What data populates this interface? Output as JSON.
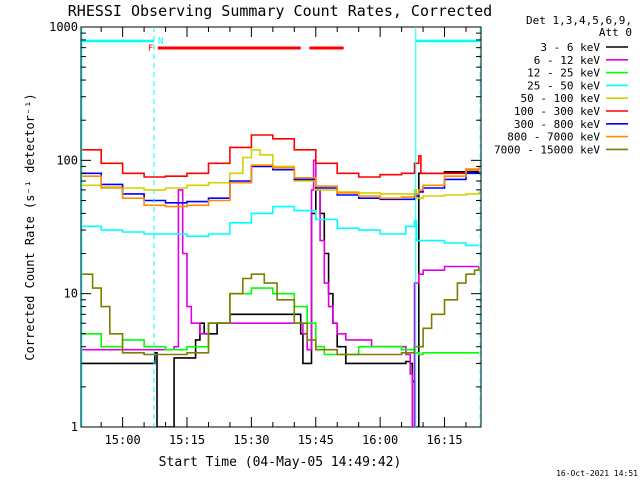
{
  "chart_data": {
    "type": "line",
    "title": "RHESSI Observing Summary Count Rates, Corrected",
    "xlabel": "Start Time (04-May-05 14:49:42)",
    "ylabel": "Corrected Count Rate (s⁻¹ detector⁻¹)",
    "y_scale": "log",
    "ylim": [
      1,
      1000
    ],
    "xlim_minutes": [
      -9.7,
      83.5
    ],
    "x_ticks": [
      {
        "minute": 0,
        "label": "15:00"
      },
      {
        "minute": 15,
        "label": "15:15"
      },
      {
        "minute": 30,
        "label": "15:30"
      },
      {
        "minute": 45,
        "label": "15:45"
      },
      {
        "minute": 60,
        "label": "16:00"
      },
      {
        "minute": 75,
        "label": "16:15"
      }
    ],
    "y_ticks": [
      {
        "value": 1,
        "label": "1"
      },
      {
        "value": 10,
        "label": "10"
      },
      {
        "value": 100,
        "label": "100"
      },
      {
        "value": 1000,
        "label": "1000"
      }
    ],
    "legend_title": [
      "Det 1,3,4,5,6,9,",
      "Att 0"
    ],
    "legend_position": "right",
    "timestamp": "16-Oct-2021 14:51",
    "series": [
      {
        "name": "3 - 6 keV",
        "color": "#000000",
        "x": [
          -9.5,
          -5,
          0,
          5,
          7.5,
          8,
          12,
          16,
          17,
          18,
          19,
          22,
          25,
          28,
          31,
          34,
          37,
          40,
          41.5,
          42,
          43,
          44,
          45,
          46,
          47,
          48,
          49,
          50,
          52,
          54,
          56,
          58,
          60,
          62,
          64,
          66,
          67,
          67.5,
          68,
          69,
          70,
          72,
          75,
          78,
          80,
          83
        ],
        "y": [
          3,
          3,
          3,
          3,
          3.6,
          1,
          3.3,
          3.3,
          4.5,
          6,
          5,
          6,
          7,
          7,
          7,
          7,
          7,
          7,
          5,
          3,
          3,
          40,
          60,
          40,
          20,
          10,
          6,
          4,
          3,
          3,
          3,
          3,
          3,
          3,
          3,
          3.1,
          3,
          2.2,
          1,
          80,
          80,
          80,
          82,
          82,
          82,
          82
        ]
      },
      {
        "name": "6 - 12 keV",
        "color": "#e100e1",
        "x": [
          -9.5,
          -5,
          0,
          5,
          10,
          12,
          13,
          14,
          15,
          16,
          18,
          20,
          23,
          26,
          30,
          34,
          38,
          42,
          43,
          44,
          44.5,
          45,
          46,
          47,
          48,
          49,
          50,
          52,
          55,
          58,
          62,
          66,
          67,
          67.5,
          68,
          69,
          70,
          75,
          80,
          83
        ],
        "y": [
          3.8,
          3.8,
          3.8,
          3.8,
          3.8,
          4,
          60,
          20,
          8,
          6,
          5,
          6,
          6,
          6,
          6,
          6,
          6,
          5,
          3.8,
          60,
          100,
          60,
          25,
          12,
          8,
          6,
          5,
          4.5,
          4.5,
          4,
          4,
          3.5,
          2.5,
          1,
          12,
          14,
          15,
          16,
          16,
          16
        ]
      },
      {
        "name": "12 - 25 keV",
        "color": "#00ff00",
        "x": [
          -9.5,
          -5,
          0,
          5,
          10,
          15,
          20,
          25,
          30,
          35,
          40,
          43,
          45,
          47,
          50,
          55,
          60,
          65,
          68,
          69,
          70,
          75,
          80,
          83
        ],
        "y": [
          5,
          4,
          4.5,
          4,
          3.8,
          4,
          6,
          10,
          11,
          10,
          8,
          6,
          4,
          3.5,
          3.5,
          4,
          4,
          3.8,
          3.6,
          3.5,
          3.6,
          3.6,
          3.6,
          3.6
        ]
      },
      {
        "name": "25 - 50 keV",
        "color": "#00ffff",
        "x": [
          -9.5,
          -5,
          0,
          5,
          10,
          15,
          20,
          25,
          30,
          35,
          40,
          45,
          50,
          55,
          60,
          62,
          64,
          66,
          68,
          68.5,
          69,
          70,
          75,
          80,
          83
        ],
        "y": [
          32,
          30,
          29,
          28,
          28,
          27,
          28,
          34,
          40,
          45,
          42,
          36,
          31,
          30,
          28,
          28,
          28,
          32,
          35,
          25,
          25,
          25,
          24,
          23,
          23
        ]
      },
      {
        "name": "50 - 100 keV",
        "color": "#d2d200",
        "x": [
          -9.5,
          -5,
          0,
          5,
          10,
          15,
          20,
          25,
          28,
          30,
          32,
          35,
          40,
          45,
          50,
          55,
          60,
          65,
          68,
          68.5,
          70,
          75,
          80,
          83
        ],
        "y": [
          65,
          63,
          62,
          60,
          62,
          65,
          68,
          80,
          105,
          120,
          110,
          90,
          70,
          60,
          58,
          57,
          56,
          56,
          60,
          52,
          54,
          55,
          56,
          58
        ]
      },
      {
        "name": "100 - 300 keV",
        "color": "#ff0000",
        "x": [
          -9.5,
          -5,
          0,
          5,
          10,
          15,
          20,
          25,
          30,
          35,
          40,
          45,
          50,
          55,
          60,
          65,
          68,
          69,
          69.5,
          70,
          75,
          80,
          83
        ],
        "y": [
          120,
          95,
          80,
          75,
          76,
          80,
          95,
          125,
          155,
          145,
          120,
          95,
          80,
          75,
          78,
          80,
          95,
          108,
          80,
          80,
          80,
          85,
          88
        ]
      },
      {
        "name": "300 - 800 keV",
        "color": "#0000ff",
        "x": [
          -9.5,
          -5,
          0,
          5,
          10,
          15,
          20,
          25,
          30,
          35,
          40,
          45,
          50,
          55,
          60,
          65,
          68,
          69,
          70,
          75,
          80,
          83
        ],
        "y": [
          80,
          66,
          56,
          50,
          48,
          49,
          52,
          70,
          90,
          85,
          72,
          62,
          55,
          52,
          51,
          51,
          54,
          58,
          62,
          72,
          80,
          82
        ]
      },
      {
        "name": "800 - 7000 keV",
        "color": "#ff8c00",
        "x": [
          -9.5,
          -5,
          0,
          5,
          10,
          15,
          20,
          25,
          30,
          35,
          40,
          45,
          50,
          55,
          60,
          65,
          68,
          69,
          70,
          75,
          80,
          83
        ],
        "y": [
          76,
          62,
          52,
          46,
          45,
          46,
          50,
          68,
          92,
          88,
          74,
          64,
          57,
          54,
          52,
          53,
          56,
          60,
          65,
          76,
          86,
          90
        ]
      },
      {
        "name": "7000 - 15000 keV",
        "color": "#7d7d00",
        "x": [
          -9.5,
          -7,
          -5,
          -3,
          0,
          5,
          10,
          15,
          20,
          25,
          28,
          30,
          33,
          36,
          40,
          43,
          45,
          50,
          55,
          60,
          65,
          67,
          68,
          70,
          72,
          75,
          78,
          80,
          82,
          83
        ],
        "y": [
          14,
          11,
          8,
          5,
          3.6,
          3.5,
          3.5,
          3.6,
          6,
          10,
          13,
          14,
          12,
          9,
          6,
          4.5,
          3.8,
          3.5,
          3.5,
          3.5,
          3.6,
          3.6,
          4,
          5.5,
          7,
          9,
          12,
          14,
          15,
          16
        ]
      }
    ],
    "annotations": [
      {
        "label": "N",
        "color": "#00ffff",
        "x_start": -9.5,
        "x_end": 7.3,
        "x_end2_start": 68.3,
        "x_end2": 83.3
      },
      {
        "label": "F",
        "color": "#ff0000",
        "intervals": [
          [
            8.2,
            41.5
          ],
          [
            43.5,
            51.5
          ]
        ]
      }
    ]
  }
}
